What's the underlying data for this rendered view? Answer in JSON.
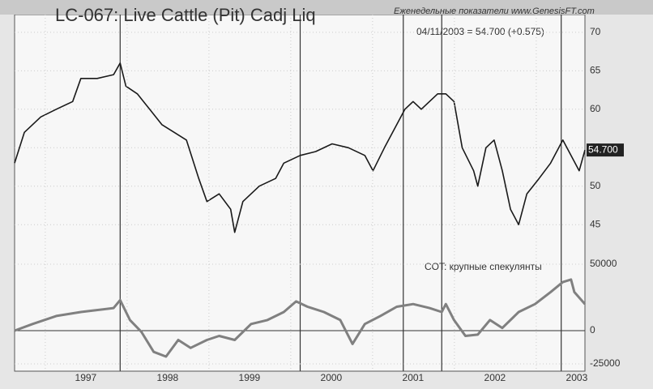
{
  "chart_data": [
    {
      "type": "line",
      "title": "LC-067:  Live Cattle (Pit) Cadj Liq",
      "subtitle": "Еженедельные показатели  www.GenesisFT.com",
      "annotation": "04/11/2003 = 54.700 (+0.575)",
      "x": [
        1996.13,
        1996.25,
        1996.45,
        1996.64,
        1996.84,
        1996.94,
        1997.14,
        1997.34,
        1997.42,
        1997.49,
        1997.63,
        1997.78,
        1997.93,
        1998.08,
        1998.23,
        1998.38,
        1998.48,
        1998.63,
        1998.77,
        1998.82,
        1998.92,
        1999.12,
        1999.32,
        1999.42,
        1999.62,
        1999.81,
        2000.01,
        2000.21,
        2000.41,
        2000.51,
        2000.65,
        2000.8,
        2000.9,
        2001.0,
        2001.1,
        2001.3,
        2001.4,
        2001.5,
        2001.6,
        2001.74,
        2001.79,
        2001.89,
        2001.99,
        2002.09,
        2002.19,
        2002.29,
        2002.39,
        2002.54,
        2002.68,
        2002.83,
        2002.93,
        2003.03,
        2003.1
      ],
      "series": [
        {
          "color": "#1a1a1a",
          "values": [
            53,
            57,
            59,
            60,
            61,
            64,
            64,
            64.5,
            66,
            63,
            62,
            60,
            58,
            57,
            56,
            51,
            48,
            49,
            47,
            44,
            48,
            50,
            51,
            53,
            54,
            54.5,
            55.5,
            55,
            54,
            52,
            55,
            58,
            60,
            61,
            60,
            62,
            62,
            61,
            55,
            52,
            50,
            55,
            56,
            52,
            47,
            45,
            49,
            51,
            53,
            56,
            54,
            52,
            54.7
          ]
        }
      ],
      "last_value": {
        "value": 54.7,
        "label": "54.700"
      },
      "xlim": [
        1996.13,
        2003.1
      ],
      "ylim": [
        42.6,
        72.3
      ],
      "yticks": [
        45,
        50,
        55,
        60,
        65,
        70
      ],
      "vlines": [
        1997.42,
        1999.62,
        2000.88,
        2001.35,
        2002.81
      ]
    },
    {
      "type": "line",
      "title": "COT: крупные спекулянты",
      "x": [
        1996.13,
        1996.35,
        1996.64,
        1996.94,
        1997.34,
        1997.42,
        1997.54,
        1997.68,
        1997.83,
        1997.98,
        1998.13,
        1998.28,
        1998.48,
        1998.63,
        1998.82,
        1999.02,
        1999.22,
        1999.42,
        1999.57,
        1999.71,
        1999.91,
        2000.11,
        2000.26,
        2000.41,
        2000.6,
        2000.8,
        2001.0,
        2001.2,
        2001.35,
        2001.4,
        2001.5,
        2001.64,
        2001.79,
        2001.94,
        2002.09,
        2002.29,
        2002.49,
        2002.68,
        2002.83,
        2002.93,
        2002.97,
        2003.1
      ],
      "series": [
        {
          "color": "#808080",
          "values": [
            0,
            5000,
            11000,
            14000,
            17000,
            23000,
            8000,
            -1000,
            -16000,
            -19500,
            -7000,
            -13000,
            -7000,
            -4000,
            -7000,
            5000,
            8000,
            14000,
            22000,
            18000,
            14000,
            8000,
            -10000,
            5000,
            11000,
            18000,
            20000,
            17000,
            14000,
            20000,
            8000,
            -4000,
            -3000,
            8000,
            2000,
            14000,
            20000,
            29000,
            36500,
            38500,
            29000,
            20000
          ]
        }
      ],
      "xlim": [
        1996.13,
        2003.1
      ],
      "ylim": [
        -30500,
        65850
      ],
      "yticks": [
        -25000,
        0,
        50000
      ],
      "hline": 0,
      "xticks": [
        1997,
        1998,
        1999,
        2000,
        2001,
        2002,
        2003
      ]
    }
  ]
}
